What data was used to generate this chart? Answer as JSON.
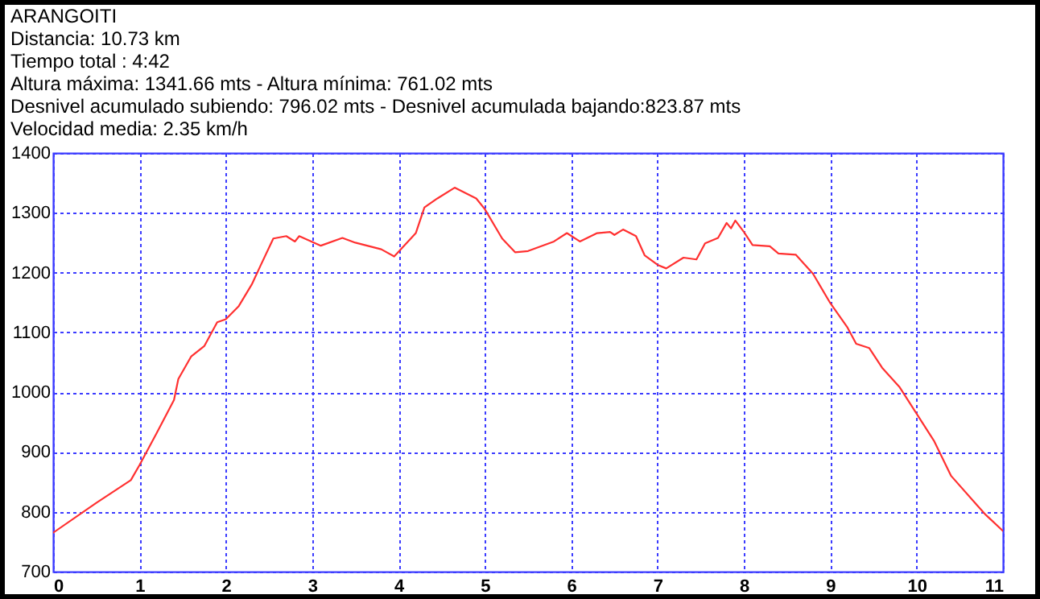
{
  "chart_data": {
    "type": "line",
    "title": "ARANGOITI",
    "annotations": [
      "Distancia: 10.73 km",
      "Tiempo total : 4:42",
      "Altura máxima: 1341.66 mts - Altura mínima: 761.02 mts",
      "Desnivel acumulado subiendo: 796.02 mts - Desnivel acumulada bajando:823.87 mts",
      "Velocidad media: 2.35 km/h"
    ],
    "x": [
      0,
      0.5,
      0.9,
      1.0,
      1.2,
      1.4,
      1.45,
      1.6,
      1.75,
      1.9,
      2.0,
      2.15,
      2.3,
      2.4,
      2.55,
      2.7,
      2.8,
      2.85,
      3.1,
      3.35,
      3.5,
      3.8,
      3.95,
      4.2,
      4.3,
      4.45,
      4.65,
      4.9,
      5.0,
      5.2,
      5.35,
      5.5,
      5.8,
      5.95,
      6.1,
      6.3,
      6.45,
      6.5,
      6.6,
      6.75,
      6.85,
      7.0,
      7.1,
      7.3,
      7.45,
      7.55,
      7.7,
      7.8,
      7.85,
      7.9,
      8.0,
      8.1,
      8.3,
      8.4,
      8.6,
      8.8,
      9.0,
      9.2,
      9.3,
      9.45,
      9.6,
      9.8,
      10.0,
      10.2,
      10.4,
      10.7,
      10.8,
      11.0
    ],
    "series": [
      {
        "color": "#ff3030",
        "values": [
          765,
          815,
          853,
          878,
          932,
          987,
          1022,
          1060,
          1077,
          1117,
          1122,
          1144,
          1180,
          1211,
          1257,
          1261,
          1252,
          1261,
          1245,
          1258,
          1250,
          1239,
          1227,
          1266,
          1309,
          1324,
          1342,
          1324,
          1306,
          1257,
          1234,
          1236,
          1252,
          1266,
          1252,
          1266,
          1268,
          1263,
          1272,
          1261,
          1229,
          1213,
          1207,
          1225,
          1222,
          1249,
          1258,
          1283,
          1274,
          1287,
          1268,
          1246,
          1244,
          1232,
          1230,
          1198,
          1149,
          1108,
          1081,
          1074,
          1041,
          1009,
          964,
          919,
          860,
          811,
          795,
          768
        ]
      }
    ],
    "xlim": [
      0,
      11
    ],
    "xticks": [
      0,
      1,
      2,
      3,
      4,
      5,
      6,
      7,
      8,
      9,
      10,
      11
    ],
    "ylim": [
      700,
      1400
    ],
    "yticks": [
      700,
      800,
      900,
      1000,
      1100,
      1200,
      1300,
      1400
    ],
    "grid": true,
    "marker": "none",
    "line_style": "solid"
  }
}
